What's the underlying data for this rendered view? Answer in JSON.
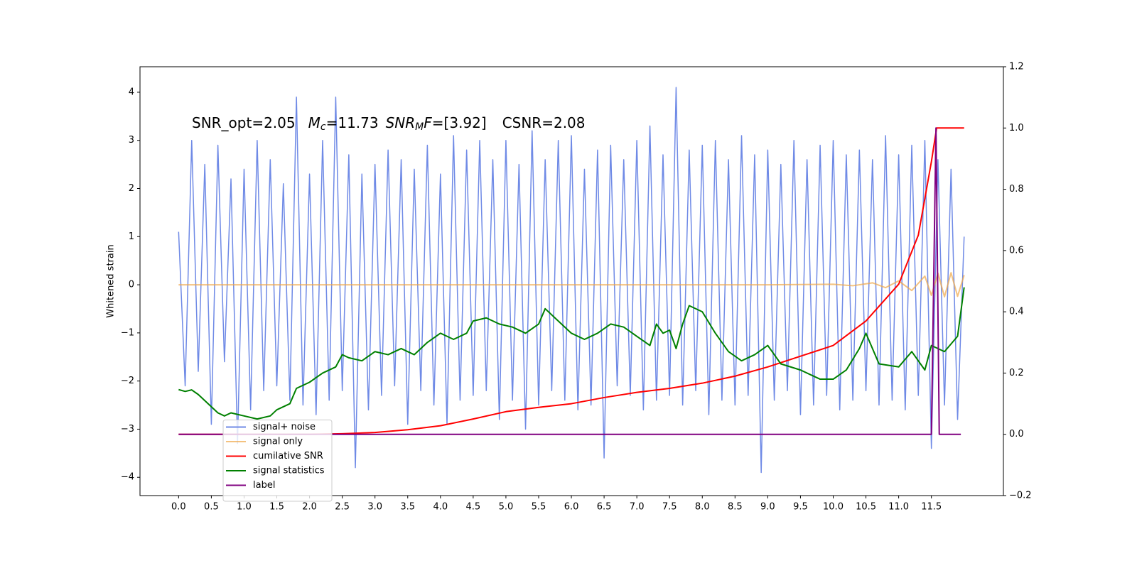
{
  "chart_data": {
    "type": "line",
    "y_label": "Whitened strain",
    "annotation": [
      "SNR_opt=2.05",
      "M",
      "c",
      "=11.73",
      "SNR",
      "M",
      "F",
      "=[3.92]",
      "CSNR=2.08"
    ],
    "xlim": [
      -0.59,
      12.6
    ],
    "ylim": [
      -4.38,
      4.53
    ],
    "y2lim": [
      -0.2,
      1.2
    ],
    "xticks": [
      {
        "value": 0,
        "label": "0.0"
      },
      0.5,
      {
        "value": 1,
        "label": "1.0"
      },
      1.5,
      {
        "value": 2,
        "label": "2.0"
      },
      2.5,
      {
        "value": 3,
        "label": "3.0"
      },
      3.5,
      {
        "value": 4,
        "label": "4.0"
      },
      4.5,
      {
        "value": 5,
        "label": "5.0"
      },
      5.5,
      {
        "value": 6,
        "label": "6.0"
      },
      6.5,
      {
        "value": 7,
        "label": "7.0"
      },
      7.5,
      {
        "value": 8,
        "label": "8.0"
      },
      8.5,
      {
        "value": 9,
        "label": "9.0"
      },
      9.5,
      {
        "value": 10,
        "label": "10.0"
      },
      10.5,
      {
        "value": 11,
        "label": "11.0"
      },
      11.5
    ],
    "yticks": [
      {
        "value": -4,
        "label": "−4"
      },
      {
        "value": -3,
        "label": "−3"
      },
      {
        "value": -2,
        "label": "−2"
      },
      {
        "value": -1,
        "label": "−1"
      },
      0,
      1,
      2,
      3,
      4
    ],
    "y2ticks": [
      {
        "value": -0.2,
        "label": "−0.2"
      },
      {
        "value": 0,
        "label": "0.0"
      },
      0.2,
      0.4,
      0.6,
      0.8,
      {
        "value": 1,
        "label": "1.0"
      },
      1.2
    ],
    "legend": "lower left",
    "grid": false,
    "series": [
      {
        "name": "signal+ noise",
        "color": "#6f8ae6",
        "axis": "y",
        "x": [
          0.0,
          0.1,
          0.2,
          0.3,
          0.4,
          0.5,
          0.6,
          0.7,
          0.8,
          0.9,
          1.0,
          1.1,
          1.2,
          1.3,
          1.4,
          1.5,
          1.6,
          1.7,
          1.8,
          1.9,
          2.0,
          2.1,
          2.2,
          2.3,
          2.4,
          2.5,
          2.6,
          2.7,
          2.8,
          2.9,
          3.0,
          3.1,
          3.2,
          3.3,
          3.4,
          3.5,
          3.6,
          3.7,
          3.8,
          3.9,
          4.0,
          4.1,
          4.2,
          4.3,
          4.4,
          4.5,
          4.6,
          4.7,
          4.8,
          4.9,
          5.0,
          5.1,
          5.2,
          5.3,
          5.4,
          5.5,
          5.6,
          5.7,
          5.8,
          5.9,
          6.0,
          6.1,
          6.2,
          6.3,
          6.4,
          6.5,
          6.6,
          6.7,
          6.8,
          6.9,
          7.0,
          7.1,
          7.2,
          7.3,
          7.4,
          7.5,
          7.6,
          7.7,
          7.8,
          7.9,
          8.0,
          8.1,
          8.2,
          8.3,
          8.4,
          8.5,
          8.6,
          8.7,
          8.8,
          8.9,
          9.0,
          9.1,
          9.2,
          9.3,
          9.4,
          9.5,
          9.6,
          9.7,
          9.8,
          9.9,
          10.0,
          10.1,
          10.2,
          10.3,
          10.4,
          10.5,
          10.6,
          10.7,
          10.8,
          10.9,
          11.0,
          11.1,
          11.2,
          11.3,
          11.4,
          11.5,
          11.6,
          11.7,
          11.8,
          11.9,
          12.0
        ],
        "values": [
          1.1,
          -2.1,
          3.0,
          -1.8,
          2.5,
          -2.9,
          2.9,
          -1.6,
          2.2,
          -3.3,
          2.4,
          -2.6,
          3.0,
          -2.2,
          2.6,
          -2.1,
          2.1,
          -2.4,
          3.9,
          -2.5,
          2.3,
          -2.7,
          3.0,
          -2.4,
          3.9,
          -2.2,
          2.7,
          -3.8,
          2.3,
          -2.6,
          2.5,
          -2.3,
          2.8,
          -2.1,
          2.6,
          -2.9,
          2.4,
          -2.2,
          2.9,
          -2.5,
          2.3,
          -2.9,
          3.1,
          -2.4,
          2.8,
          -2.3,
          3.0,
          -2.2,
          2.6,
          -2.8,
          3.0,
          -2.4,
          2.5,
          -3.0,
          3.2,
          -2.5,
          2.6,
          -2.2,
          3.0,
          -2.4,
          3.1,
          -2.6,
          2.4,
          -2.5,
          2.8,
          -3.6,
          2.9,
          -2.1,
          2.6,
          -2.3,
          3.0,
          -2.6,
          3.3,
          -2.4,
          2.7,
          -2.3,
          4.1,
          -2.5,
          2.8,
          -2.2,
          2.9,
          -2.7,
          3.0,
          -2.4,
          2.6,
          -2.5,
          3.1,
          -2.3,
          2.7,
          -3.9,
          2.8,
          -2.4,
          2.5,
          -2.2,
          3.0,
          -2.7,
          2.6,
          -2.5,
          2.9,
          -2.3,
          3.0,
          -2.6,
          2.7,
          -2.4,
          2.8,
          -2.2,
          2.6,
          -2.5,
          3.1,
          -2.4,
          2.7,
          -2.6,
          2.9,
          -2.3,
          3.0,
          -3.4,
          2.6,
          -2.5,
          2.4,
          -2.8,
          1.0
        ]
      },
      {
        "name": "signal only",
        "color": "#f0a848",
        "axis": "y",
        "x": [
          0.0,
          1.0,
          2.0,
          3.0,
          4.0,
          5.0,
          6.0,
          7.0,
          8.0,
          9.0,
          10.0,
          10.3,
          10.6,
          10.8,
          11.0,
          11.2,
          11.4,
          11.5,
          11.6,
          11.7,
          11.8,
          11.9,
          12.0
        ],
        "values": [
          0,
          0,
          0,
          0,
          0,
          0,
          0,
          0,
          0,
          0,
          0.01,
          -0.02,
          0.04,
          -0.06,
          0.08,
          -0.12,
          0.18,
          -0.22,
          0.24,
          -0.25,
          0.25,
          -0.24,
          0.2
        ]
      },
      {
        "name": "cumilative SNR",
        "color": "#ff0000",
        "axis": "y2",
        "x": [
          0.0,
          1.0,
          2.0,
          2.5,
          3.0,
          3.5,
          4.0,
          4.5,
          5.0,
          5.5,
          6.0,
          6.5,
          7.0,
          7.5,
          8.0,
          8.5,
          9.0,
          9.5,
          10.0,
          10.5,
          11.0,
          11.3,
          11.5,
          11.58,
          12.0
        ],
        "values": [
          0,
          0,
          0,
          0.002,
          0.006,
          0.015,
          0.028,
          0.05,
          0.074,
          0.088,
          0.1,
          0.12,
          0.137,
          0.15,
          0.167,
          0.19,
          0.22,
          0.255,
          0.29,
          0.37,
          0.49,
          0.65,
          0.89,
          1.0,
          1.0
        ]
      },
      {
        "name": "signal statistics",
        "color": "#008000",
        "axis": "y2",
        "x": [
          0.0,
          0.1,
          0.2,
          0.3,
          0.5,
          0.6,
          0.7,
          0.8,
          1.0,
          1.2,
          1.4,
          1.5,
          1.7,
          1.8,
          2.0,
          2.2,
          2.4,
          2.5,
          2.6,
          2.8,
          3.0,
          3.2,
          3.4,
          3.6,
          3.8,
          4.0,
          4.2,
          4.4,
          4.5,
          4.7,
          4.9,
          5.1,
          5.3,
          5.5,
          5.6,
          5.8,
          6.0,
          6.2,
          6.4,
          6.6,
          6.8,
          7.0,
          7.2,
          7.3,
          7.4,
          7.5,
          7.6,
          7.7,
          7.8,
          8.0,
          8.2,
          8.4,
          8.6,
          8.8,
          9.0,
          9.2,
          9.5,
          9.8,
          10.0,
          10.2,
          10.4,
          10.5,
          10.7,
          11.0,
          11.2,
          11.4,
          11.5,
          11.7,
          11.9,
          12.0
        ],
        "values": [
          0.146,
          0.14,
          0.145,
          0.13,
          0.09,
          0.07,
          0.06,
          0.07,
          0.06,
          0.05,
          0.06,
          0.08,
          0.1,
          0.15,
          0.17,
          0.2,
          0.22,
          0.26,
          0.25,
          0.24,
          0.27,
          0.26,
          0.28,
          0.26,
          0.3,
          0.33,
          0.31,
          0.33,
          0.37,
          0.38,
          0.36,
          0.35,
          0.33,
          0.36,
          0.41,
          0.37,
          0.33,
          0.31,
          0.33,
          0.36,
          0.35,
          0.32,
          0.29,
          0.36,
          0.33,
          0.34,
          0.28,
          0.36,
          0.42,
          0.4,
          0.33,
          0.27,
          0.24,
          0.26,
          0.29,
          0.23,
          0.21,
          0.18,
          0.18,
          0.21,
          0.28,
          0.33,
          0.23,
          0.22,
          0.27,
          0.21,
          0.29,
          0.27,
          0.32,
          0.48
        ]
      },
      {
        "name": "label",
        "color": "#800080",
        "axis": "y2",
        "x": [
          0.0,
          11.5,
          11.57,
          11.62,
          11.95
        ],
        "values": [
          0,
          0,
          1,
          0,
          0
        ]
      }
    ]
  }
}
